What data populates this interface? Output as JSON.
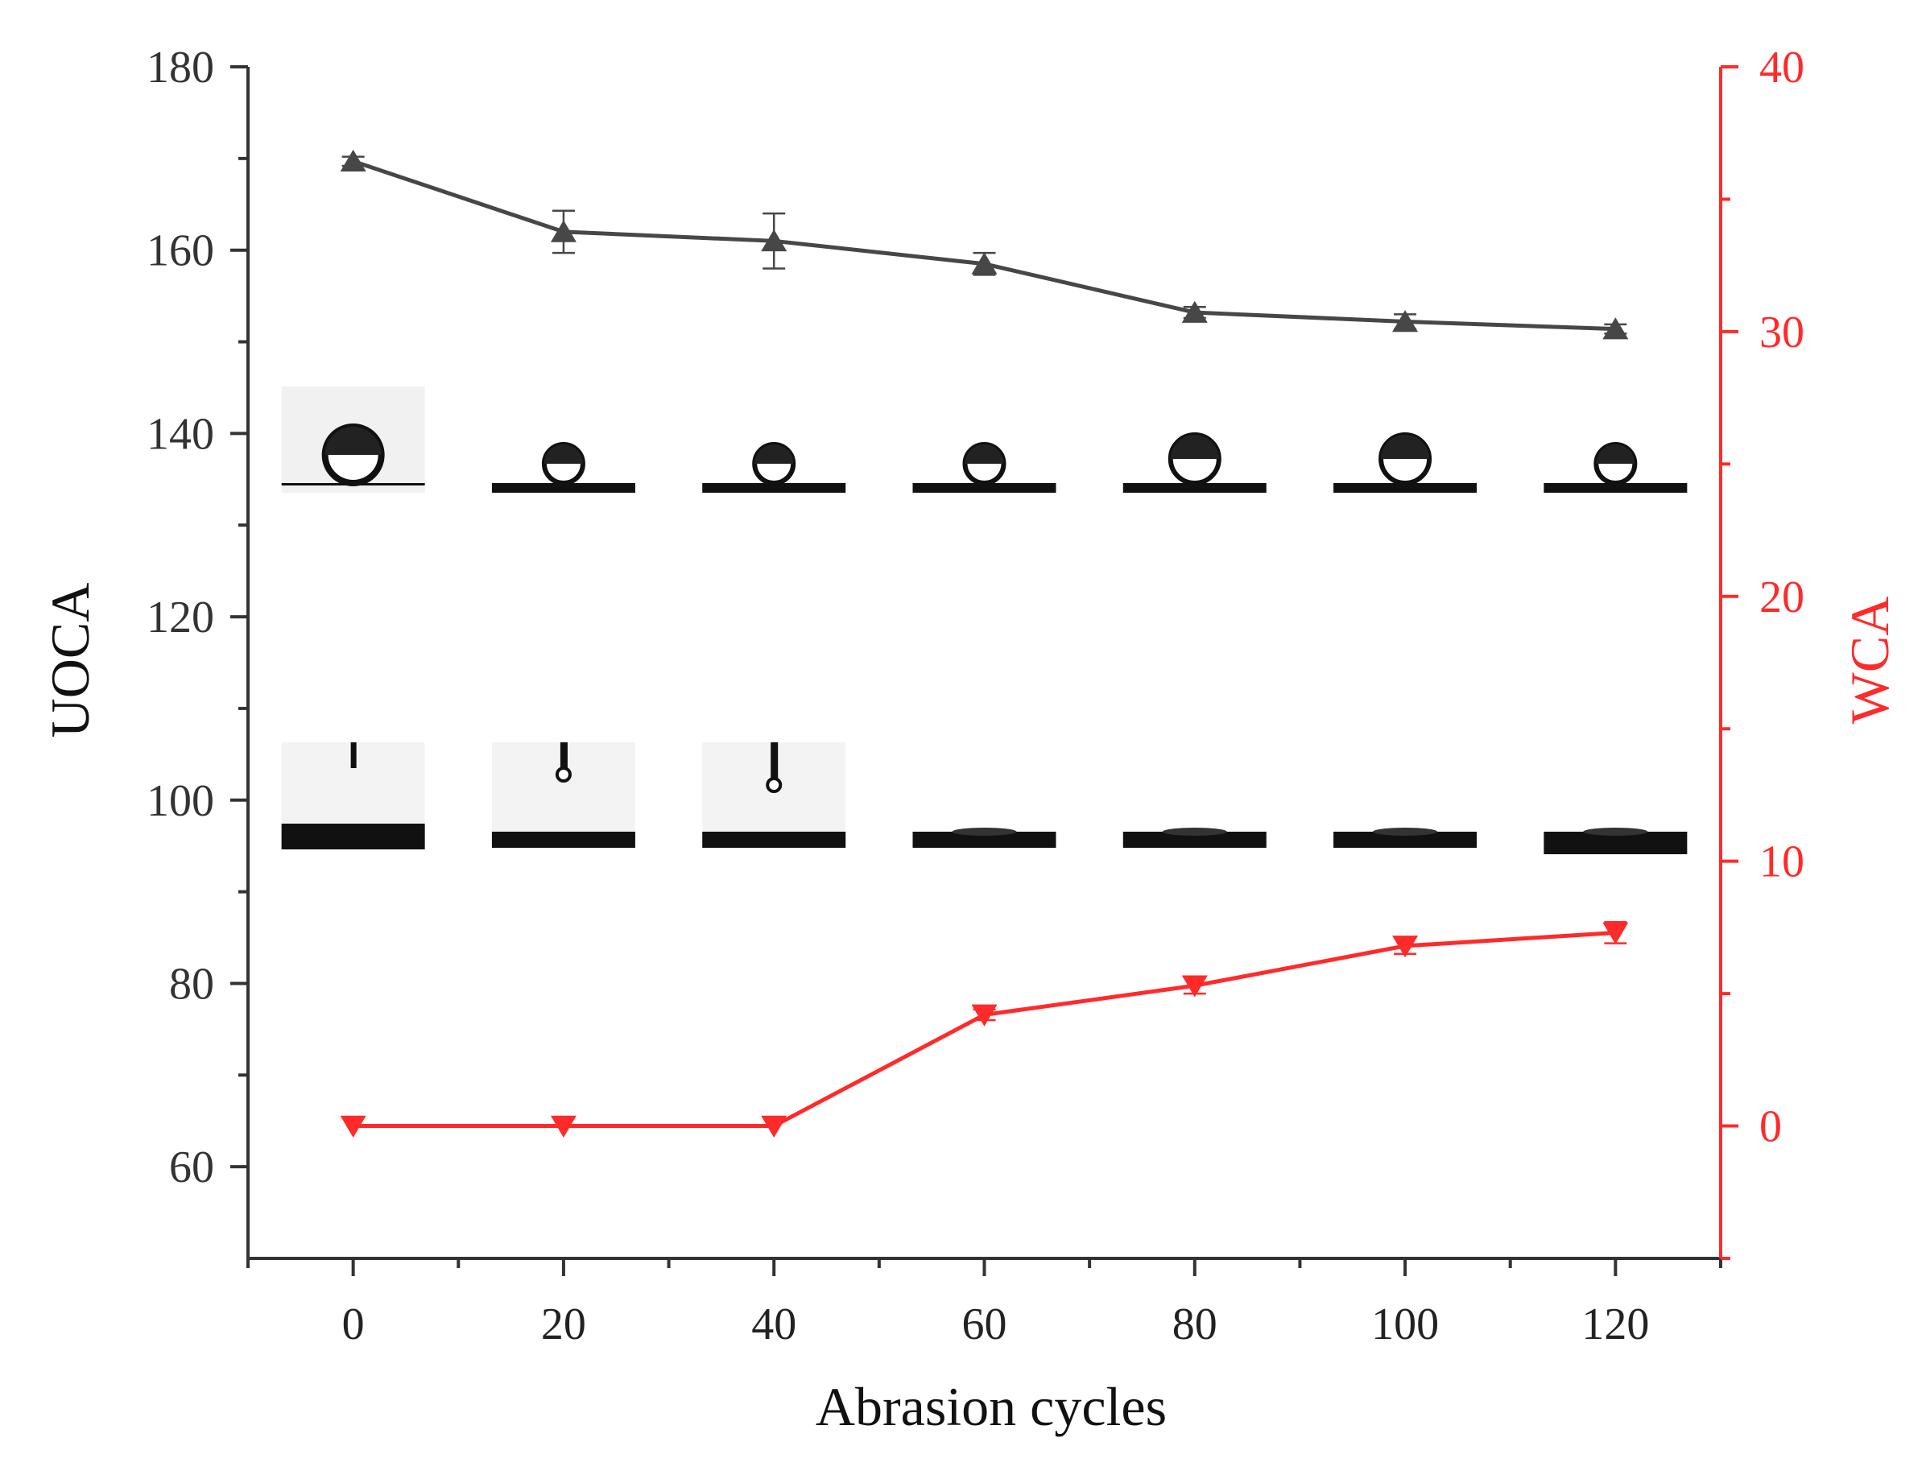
{
  "chart_data": {
    "type": "line",
    "x_axis": {
      "label": "Abrasion cycles",
      "range": [
        -10,
        130
      ],
      "ticks": [
        0,
        20,
        40,
        60,
        80,
        100,
        120
      ],
      "tick_labels": [
        "0",
        "20",
        "40",
        "60",
        "80",
        "100",
        "120"
      ]
    },
    "y_left_axis": {
      "label": "UOCA",
      "range": [
        50,
        180
      ],
      "ticks": [
        60,
        80,
        100,
        120,
        140,
        160,
        180
      ],
      "tick_labels": [
        "60",
        "80",
        "100",
        "120",
        "140",
        "160",
        "180"
      ],
      "color": "#333333"
    },
    "y_right_axis": {
      "label": "WCA",
      "range": [
        -5,
        40
      ],
      "ticks": [
        0,
        10,
        20,
        30,
        40
      ],
      "tick_labels": [
        "0",
        "10",
        "20",
        "30",
        "40"
      ],
      "color": "#ff2a2a"
    },
    "x": [
      0,
      20,
      40,
      60,
      80,
      100,
      120
    ],
    "series": [
      {
        "axis": "left",
        "marker": "triangle-up",
        "color": "#474747",
        "values": [
          169.7,
          162.0,
          161.0,
          158.5,
          153.2,
          152.2,
          151.4
        ],
        "errors": [
          0.5,
          2.3,
          3.0,
          1.2,
          0.6,
          0.8,
          0.5
        ]
      },
      {
        "axis": "right",
        "marker": "triangle-down",
        "color": "#ff2a2a",
        "values": [
          0,
          0,
          0,
          4.2,
          5.3,
          6.8,
          7.3
        ],
        "errors": [
          0,
          0,
          0,
          0.2,
          0.3,
          0.3,
          0.4
        ]
      }
    ],
    "grid": false,
    "legend": "none"
  }
}
